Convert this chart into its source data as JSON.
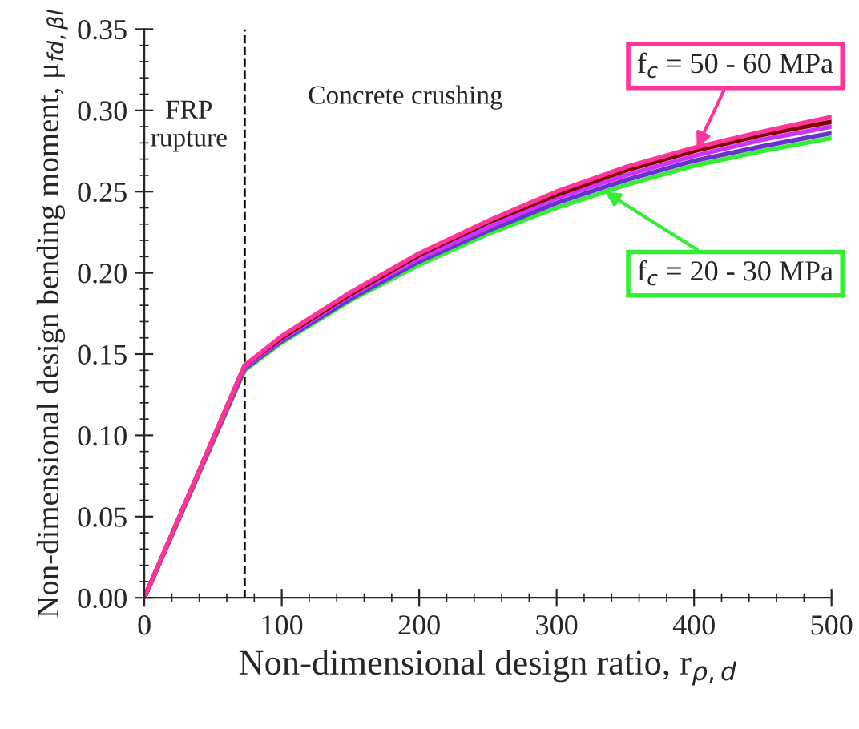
{
  "chart_data": {
    "type": "line",
    "xlabel": "Non-dimensional design ratio, r$_{ρ,d}$",
    "ylabel": "Non-dimensional design bending moment, μ$_{fd,βl}$",
    "x": [
      0,
      73,
      100,
      150,
      200,
      250,
      300,
      350,
      400,
      450,
      500
    ],
    "series": [
      {
        "color": "#33ee33",
        "values": [
          0,
          0.14,
          0.157,
          0.183,
          0.205,
          0.224,
          0.24,
          0.254,
          0.266,
          0.275,
          0.283
        ]
      },
      {
        "color": "#6633cc",
        "values": [
          0,
          0.141,
          0.158,
          0.184,
          0.207,
          0.226,
          0.243,
          0.257,
          0.269,
          0.278,
          0.286
        ]
      },
      {
        "color": "#cc33ff",
        "values": [
          0,
          0.142,
          0.159,
          0.186,
          0.209,
          0.228,
          0.246,
          0.26,
          0.272,
          0.282,
          0.29
        ]
      },
      {
        "color": "#800000",
        "values": [
          0,
          0.143,
          0.16,
          0.187,
          0.211,
          0.231,
          0.248,
          0.263,
          0.275,
          0.285,
          0.293
        ]
      },
      {
        "color": "#ff3399",
        "values": [
          0,
          0.143,
          0.161,
          0.188,
          0.212,
          0.232,
          0.25,
          0.265,
          0.277,
          0.287,
          0.296
        ]
      }
    ],
    "xlim": [
      0,
      500
    ],
    "xticks": [
      0,
      100,
      200,
      300,
      400,
      500
    ],
    "ylim": [
      0,
      0.35
    ],
    "yticks": [
      {
        "value": 0,
        "label": "0.00"
      },
      {
        "value": 0.05,
        "label": "0.05"
      },
      {
        "value": 0.1,
        "label": "0.10"
      },
      {
        "value": 0.15,
        "label": "0.15"
      },
      {
        "value": 0.2,
        "label": "0.20"
      },
      {
        "value": 0.25,
        "label": "0.25"
      },
      {
        "value": 0.3,
        "label": "0.30"
      },
      {
        "value": 0.35,
        "label": "0.35"
      }
    ],
    "ref_lines": [
      {
        "axis": "x",
        "value": 73,
        "color": "#000000",
        "line_style": "dashed"
      }
    ],
    "annotations": [
      "FRP\nrupture",
      "Concrete crushing",
      {
        "text": "f$_{c}$ = 50 - 60 MPa",
        "x": 402,
        "y": 0.277
      },
      {
        "text": "f$_{c}$ = 20 - 30 MPa",
        "x": 335,
        "y": 0.25
      }
    ],
    "grid": false,
    "marker": "none",
    "line_style": "solid"
  }
}
